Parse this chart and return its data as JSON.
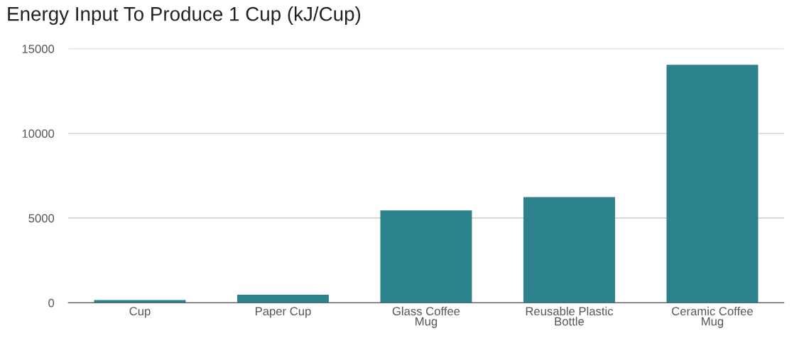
{
  "chart_data": {
    "type": "bar",
    "title": "Energy Input To Produce 1 Cup (kJ/Cup)",
    "categories": [
      "Cup",
      "Paper Cup",
      "Glass Coffee\nMug",
      "Reusable Plastic\nBottle",
      "Ceramic Coffee\nMug"
    ],
    "values": [
      160,
      470,
      5450,
      6240,
      14050
    ],
    "color": "#2b828c",
    "ylim": [
      0,
      15000
    ],
    "yticks": [
      0,
      5000,
      10000,
      15000
    ],
    "grid": "y"
  }
}
